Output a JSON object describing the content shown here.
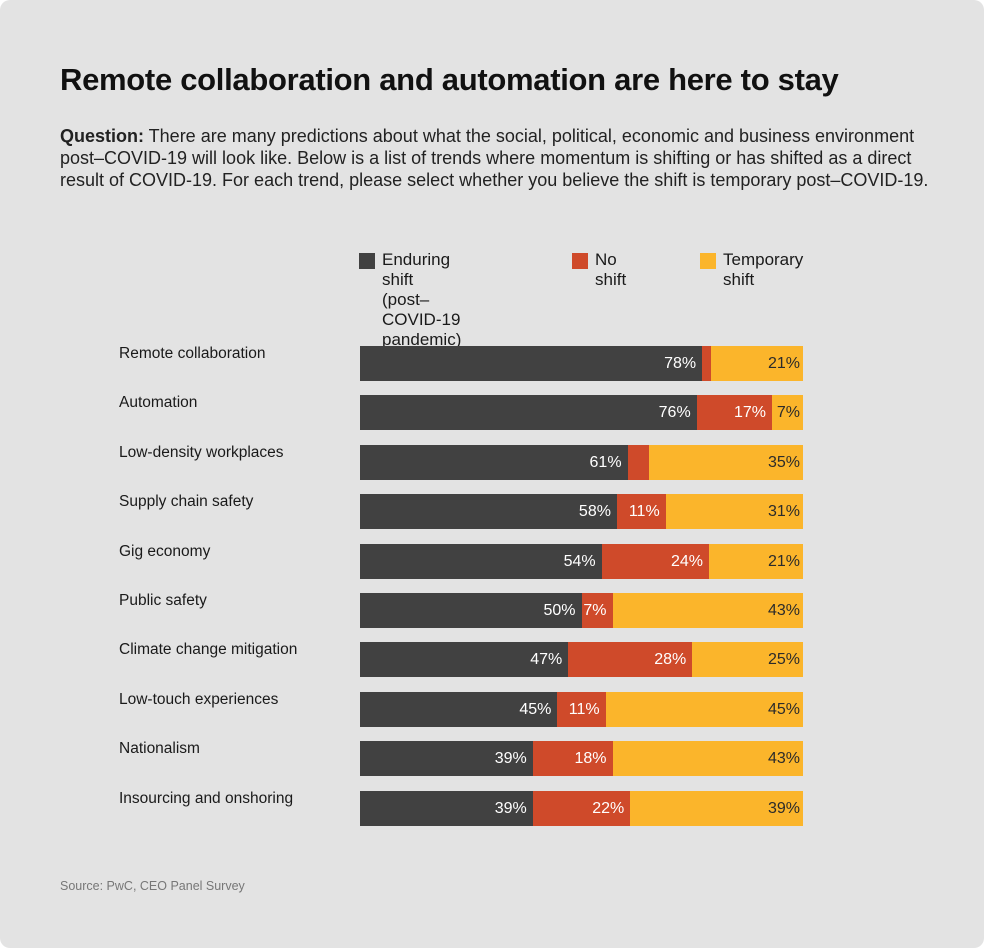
{
  "title": "Remote collaboration and automation are here to stay",
  "question": {
    "label": "Question:",
    "text": " There are many predictions about what the social, political, economic and business environment post–COVID-19 will look like. Below is a list of trends where momentum is shifting or has shifted as a direct result of COVID-19. For each trend, please select whether you believe the shift is temporary post–COVID-19."
  },
  "source": "Source: PwC, CEO Panel Survey",
  "colors": {
    "enduring": "#414141",
    "no_shift": "#cf4a2a",
    "temporary": "#fbb52b",
    "label_light": "#ffffff",
    "label_dark": "#2b2b2b",
    "label_accent": "#cf4a2a"
  },
  "chart_data": {
    "type": "bar",
    "orientation": "horizontal",
    "stacked": true,
    "legend_position": "top",
    "categories": [
      "Remote collaboration",
      "Automation",
      "Low-density workplaces",
      "Supply chain safety",
      "Gig economy",
      "Public safety",
      "Climate change mitigation",
      "Low-touch experiences",
      "Nationalism",
      "Insourcing and onshoring"
    ],
    "series": [
      {
        "name": "Enduring shift\n(post–COVID-19\npandemic)",
        "values": [
          78,
          76,
          61,
          58,
          54,
          50,
          47,
          45,
          39,
          39
        ]
      },
      {
        "name": "No shift",
        "values": [
          2,
          17,
          5,
          11,
          24,
          7,
          28,
          11,
          18,
          22
        ]
      },
      {
        "name": "Temporary\nshift",
        "values": [
          21,
          7,
          35,
          31,
          21,
          43,
          25,
          45,
          43,
          39
        ]
      }
    ],
    "value_suffix": "%"
  }
}
